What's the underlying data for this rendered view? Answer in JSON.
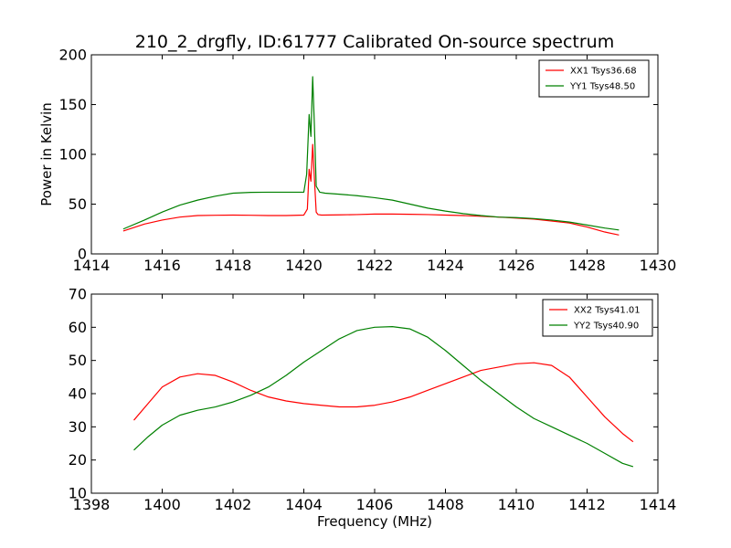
{
  "title": "210_2_drgfly, ID:61777 Calibrated On-source spectrum",
  "chart_data": [
    {
      "type": "line",
      "title": "210_2_drgfly, ID:61777 Calibrated On-source spectrum",
      "xlabel": "",
      "ylabel": "Power in Kelvin",
      "xlim": [
        1414,
        1430
      ],
      "ylim": [
        0,
        200
      ],
      "xticks": [
        1414,
        1416,
        1418,
        1420,
        1422,
        1424,
        1426,
        1428,
        1430
      ],
      "yticks": [
        0,
        50,
        100,
        150,
        200
      ],
      "grid": false,
      "legend_position": "top-right",
      "series": [
        {
          "name": "XX1 Tsys36.68",
          "color": "#ff0000",
          "x": [
            1414.9,
            1415.5,
            1416.0,
            1416.5,
            1417.0,
            1417.5,
            1418.0,
            1418.5,
            1419.0,
            1419.5,
            1420.0,
            1420.1,
            1420.15,
            1420.2,
            1420.25,
            1420.3,
            1420.35,
            1420.4,
            1420.5,
            1421.0,
            1421.5,
            1422.0,
            1422.5,
            1423.0,
            1423.5,
            1424.0,
            1424.5,
            1425.0,
            1425.5,
            1426.0,
            1426.5,
            1427.0,
            1427.5,
            1428.0,
            1428.5,
            1428.9
          ],
          "y": [
            23,
            30,
            34,
            37,
            38.5,
            38.8,
            39,
            38.8,
            38.5,
            38.5,
            39,
            45,
            85,
            73,
            110,
            75,
            42,
            39.5,
            39,
            39.2,
            39.5,
            40,
            40,
            39.8,
            39.5,
            39,
            38.5,
            37.8,
            37,
            36,
            35,
            33,
            31,
            27,
            22,
            19
          ]
        },
        {
          "name": "YY1 Tsys48.50",
          "color": "#008000",
          "x": [
            1414.9,
            1415.5,
            1416.0,
            1416.5,
            1417.0,
            1417.5,
            1418.0,
            1418.5,
            1419.0,
            1419.5,
            1420.0,
            1420.08,
            1420.15,
            1420.2,
            1420.25,
            1420.3,
            1420.35,
            1420.45,
            1420.6,
            1421.0,
            1421.5,
            1422.0,
            1422.5,
            1423.0,
            1423.5,
            1424.0,
            1424.5,
            1425.0,
            1425.5,
            1426.0,
            1426.5,
            1427.0,
            1427.5,
            1428.0,
            1428.5,
            1428.9
          ],
          "y": [
            25,
            34,
            42,
            49,
            54,
            58,
            61,
            61.8,
            62,
            62,
            62,
            80,
            140,
            118,
            178,
            128,
            68,
            62,
            61,
            60,
            58.5,
            56.5,
            54,
            50,
            46,
            43,
            40.5,
            38.5,
            37,
            36.5,
            35.5,
            34,
            32,
            29,
            26,
            24
          ]
        }
      ]
    },
    {
      "type": "line",
      "title": "",
      "xlabel": "Frequency (MHz)",
      "ylabel": "",
      "xlim": [
        1398,
        1414
      ],
      "ylim": [
        10,
        70
      ],
      "xticks": [
        1398,
        1400,
        1402,
        1404,
        1406,
        1408,
        1410,
        1412,
        1414
      ],
      "yticks": [
        10,
        20,
        30,
        40,
        50,
        60,
        70
      ],
      "grid": false,
      "legend_position": "top-right",
      "series": [
        {
          "name": "XX2 Tsys41.01",
          "color": "#ff0000",
          "x": [
            1399.2,
            1399.6,
            1400.0,
            1400.5,
            1401.0,
            1401.5,
            1402.0,
            1402.5,
            1403.0,
            1403.5,
            1404.0,
            1404.5,
            1405.0,
            1405.5,
            1406.0,
            1406.5,
            1407.0,
            1407.5,
            1408.0,
            1408.5,
            1409.0,
            1409.5,
            1410.0,
            1410.5,
            1411.0,
            1411.5,
            1412.0,
            1412.5,
            1413.0,
            1413.3
          ],
          "y": [
            32,
            37,
            42,
            45,
            46,
            45.5,
            43.5,
            41,
            39,
            37.8,
            37,
            36.5,
            36,
            36,
            36.5,
            37.5,
            39,
            41,
            43,
            45,
            47,
            48,
            49,
            49.3,
            48.5,
            45,
            39,
            33,
            28,
            25.5
          ]
        },
        {
          "name": "YY2 Tsys40.90",
          "color": "#008000",
          "x": [
            1399.2,
            1399.6,
            1400.0,
            1400.5,
            1401.0,
            1401.5,
            1402.0,
            1402.5,
            1403.0,
            1403.5,
            1404.0,
            1404.5,
            1405.0,
            1405.5,
            1406.0,
            1406.5,
            1407.0,
            1407.5,
            1408.0,
            1408.5,
            1409.0,
            1409.5,
            1410.0,
            1410.5,
            1411.0,
            1411.5,
            1412.0,
            1412.5,
            1413.0,
            1413.3
          ],
          "y": [
            23,
            27,
            30.5,
            33.5,
            35,
            36,
            37.5,
            39.5,
            42,
            45.5,
            49.5,
            53,
            56.5,
            59,
            60,
            60.2,
            59.5,
            57,
            53,
            48.5,
            44,
            40,
            36,
            32.5,
            30,
            27.5,
            25,
            22,
            19,
            18
          ]
        }
      ]
    }
  ]
}
